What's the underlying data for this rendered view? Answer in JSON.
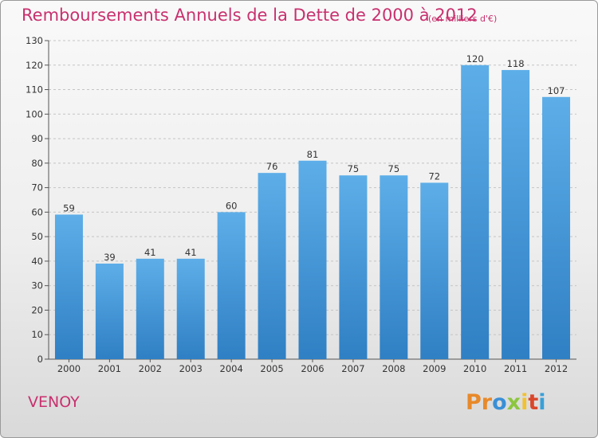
{
  "header": {
    "title": "Remboursements Annuels de la Dette de 2000 à 2012",
    "subtitle": "(en milliers d'€)"
  },
  "footer": {
    "commune": "VENOY",
    "logo_letters": [
      "Pr",
      "o",
      "x",
      "i",
      "t",
      "i"
    ]
  },
  "colors": {
    "title": "#c8306e",
    "bar_top": "#5daee8",
    "bar_bottom": "#2f7fc4",
    "grid": "#c4c4c4"
  },
  "chart_data": {
    "type": "bar",
    "title": "Remboursements Annuels de la Dette de 2000 à 2012",
    "subtitle": "(en milliers d'€)",
    "xlabel": "",
    "ylabel": "",
    "categories": [
      "2000",
      "2001",
      "2002",
      "2003",
      "2004",
      "2005",
      "2006",
      "2007",
      "2008",
      "2009",
      "2010",
      "2011",
      "2012"
    ],
    "values": [
      59,
      39,
      41,
      41,
      60,
      76,
      81,
      75,
      75,
      72,
      120,
      118,
      107
    ],
    "ylim": [
      0,
      130
    ],
    "yticks": [
      0,
      10,
      20,
      30,
      40,
      50,
      60,
      70,
      80,
      90,
      100,
      110,
      120,
      130
    ],
    "grid": "horizontal dashed",
    "legend": "none"
  }
}
